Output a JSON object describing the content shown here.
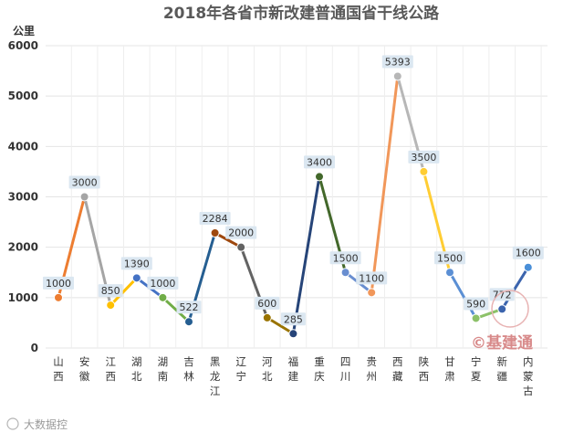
{
  "chart_data": {
    "type": "line",
    "title": "2018年各省市新改建普通国省干线公路",
    "ylabel": "公里",
    "ylim": [
      0,
      6000
    ],
    "yticks": [
      0,
      1000,
      2000,
      3000,
      4000,
      5000,
      6000
    ],
    "grid": true,
    "categories": [
      "山西",
      "安徽",
      "江西",
      "湖北",
      "湖南",
      "吉林",
      "黑龙江",
      "辽宁",
      "河北",
      "福建",
      "重庆",
      "四川",
      "贵州",
      "西藏",
      "陕西",
      "甘肃",
      "宁夏",
      "新疆",
      "内蒙古"
    ],
    "values": [
      1000,
      3000,
      850,
      1390,
      1000,
      522,
      2284,
      2000,
      600,
      285,
      3400,
      1500,
      1100,
      5393,
      3500,
      1500,
      590,
      772,
      1600
    ],
    "point_colors": [
      "#ed7d31",
      "#a5a5a5",
      "#ffc000",
      "#4472c4",
      "#70ad47",
      "#255e91",
      "#9e480e",
      "#636363",
      "#997300",
      "#264478",
      "#43682b",
      "#698ed0",
      "#f1975a",
      "#b7b7b7",
      "#ffcd33",
      "#5b8fd4",
      "#8cc168",
      "#3b64ad",
      "#4a8fd8"
    ],
    "segment_colors": [
      "#ed7d31",
      "#a5a5a5",
      "#ffc000",
      "#4472c4",
      "#70ad47",
      "#255e91",
      "#9e480e",
      "#636363",
      "#997300",
      "#264478",
      "#43682b",
      "#698ed0",
      "#f1975a",
      "#b7b7b7",
      "#ffcd33",
      "#5b8fd4",
      "#8cc168",
      "#3b64ad"
    ]
  },
  "watermark": {
    "text": "©基建通"
  },
  "source": {
    "text": "大数据控"
  }
}
